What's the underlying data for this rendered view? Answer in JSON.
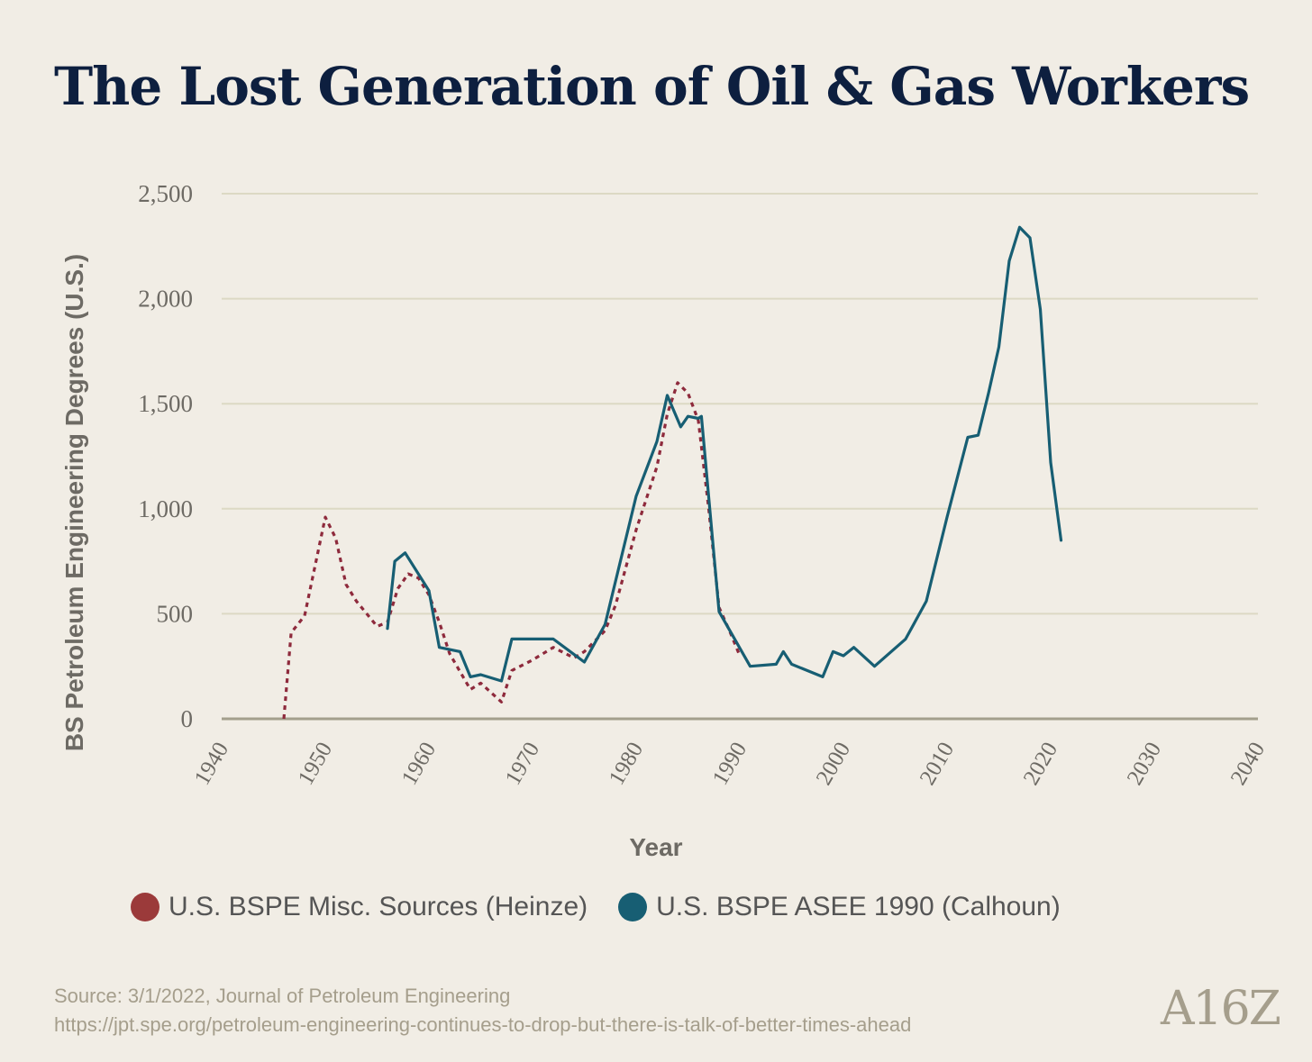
{
  "title": "The Lost Generation of Oil & Gas Workers",
  "legend": [
    {
      "label": "U.S. BSPE Misc. Sources (Heinze)",
      "color": "#9b3a3a"
    },
    {
      "label": "U.S. BSPE ASEE 1990 (Calhoun)",
      "color": "#175e73"
    }
  ],
  "source": {
    "line1": "Source: 3/1/2022, Journal of Petroleum Engineering",
    "line2": "https://jpt.spe.org/petroleum-engineering-continues-to-drop-but-there-is-talk-of-better-times-ahead"
  },
  "logo": "A16Z",
  "chart_data": {
    "type": "line",
    "xlabel": "Year",
    "ylabel": "BS Petroleum Engineering Degrees (U.S.)",
    "xlim": [
      1940,
      2040
    ],
    "ylim": [
      0,
      2500
    ],
    "xticks": [
      "1940",
      "1950",
      "1960",
      "1970",
      "1980",
      "1990",
      "2000",
      "2010",
      "2020",
      "2030",
      "2040"
    ],
    "yticks": [
      "0",
      "500",
      "1,000",
      "1,500",
      "2,000",
      "2,500"
    ],
    "grid": true,
    "legend_position": "bottom",
    "series": [
      {
        "name": "U.S. BSPE Misc. Sources (Heinze)",
        "color": "#8e2a3c",
        "style": "dotted",
        "x": [
          1946,
          1946.7,
          1948,
          1950,
          1951,
          1952,
          1953,
          1955,
          1956,
          1957,
          1958,
          1959,
          1960,
          1961,
          1962,
          1964,
          1965,
          1967,
          1968,
          1970,
          1972,
          1974,
          1975,
          1977,
          1978,
          1980,
          1982,
          1983,
          1984,
          1985,
          1986,
          1987,
          1988,
          1989,
          1990
        ],
        "y": [
          0,
          410,
          490,
          960,
          860,
          640,
          560,
          440,
          460,
          620,
          690,
          670,
          590,
          460,
          310,
          140,
          170,
          80,
          230,
          280,
          340,
          290,
          320,
          420,
          540,
          900,
          1200,
          1450,
          1600,
          1550,
          1420,
          1000,
          530,
          420,
          300
        ]
      },
      {
        "name": "U.S. BSPE ASEE 1990 (Calhoun)",
        "color": "#175e73",
        "style": "solid",
        "x": [
          1956,
          1956.7,
          1957.7,
          1960,
          1961,
          1963,
          1964,
          1965,
          1967,
          1968,
          1972,
          1975,
          1977,
          1980,
          1982,
          1983,
          1984.3,
          1985,
          1986,
          1986.3,
          1988,
          1991,
          1993.5,
          1994.2,
          1995,
          1998,
          1999,
          2000,
          2001,
          2003,
          2006,
          2008,
          2010,
          2012,
          2013,
          2014,
          2015,
          2016,
          2017,
          2018,
          2019,
          2020,
          2021
        ],
        "y": [
          430,
          750,
          790,
          610,
          340,
          320,
          200,
          210,
          180,
          380,
          380,
          270,
          450,
          1060,
          1320,
          1540,
          1390,
          1440,
          1430,
          1440,
          510,
          250,
          260,
          320,
          260,
          200,
          320,
          300,
          340,
          250,
          380,
          560,
          960,
          1340,
          1350,
          1550,
          1770,
          2180,
          2340,
          2290,
          1950,
          1220,
          850
        ]
      }
    ]
  }
}
